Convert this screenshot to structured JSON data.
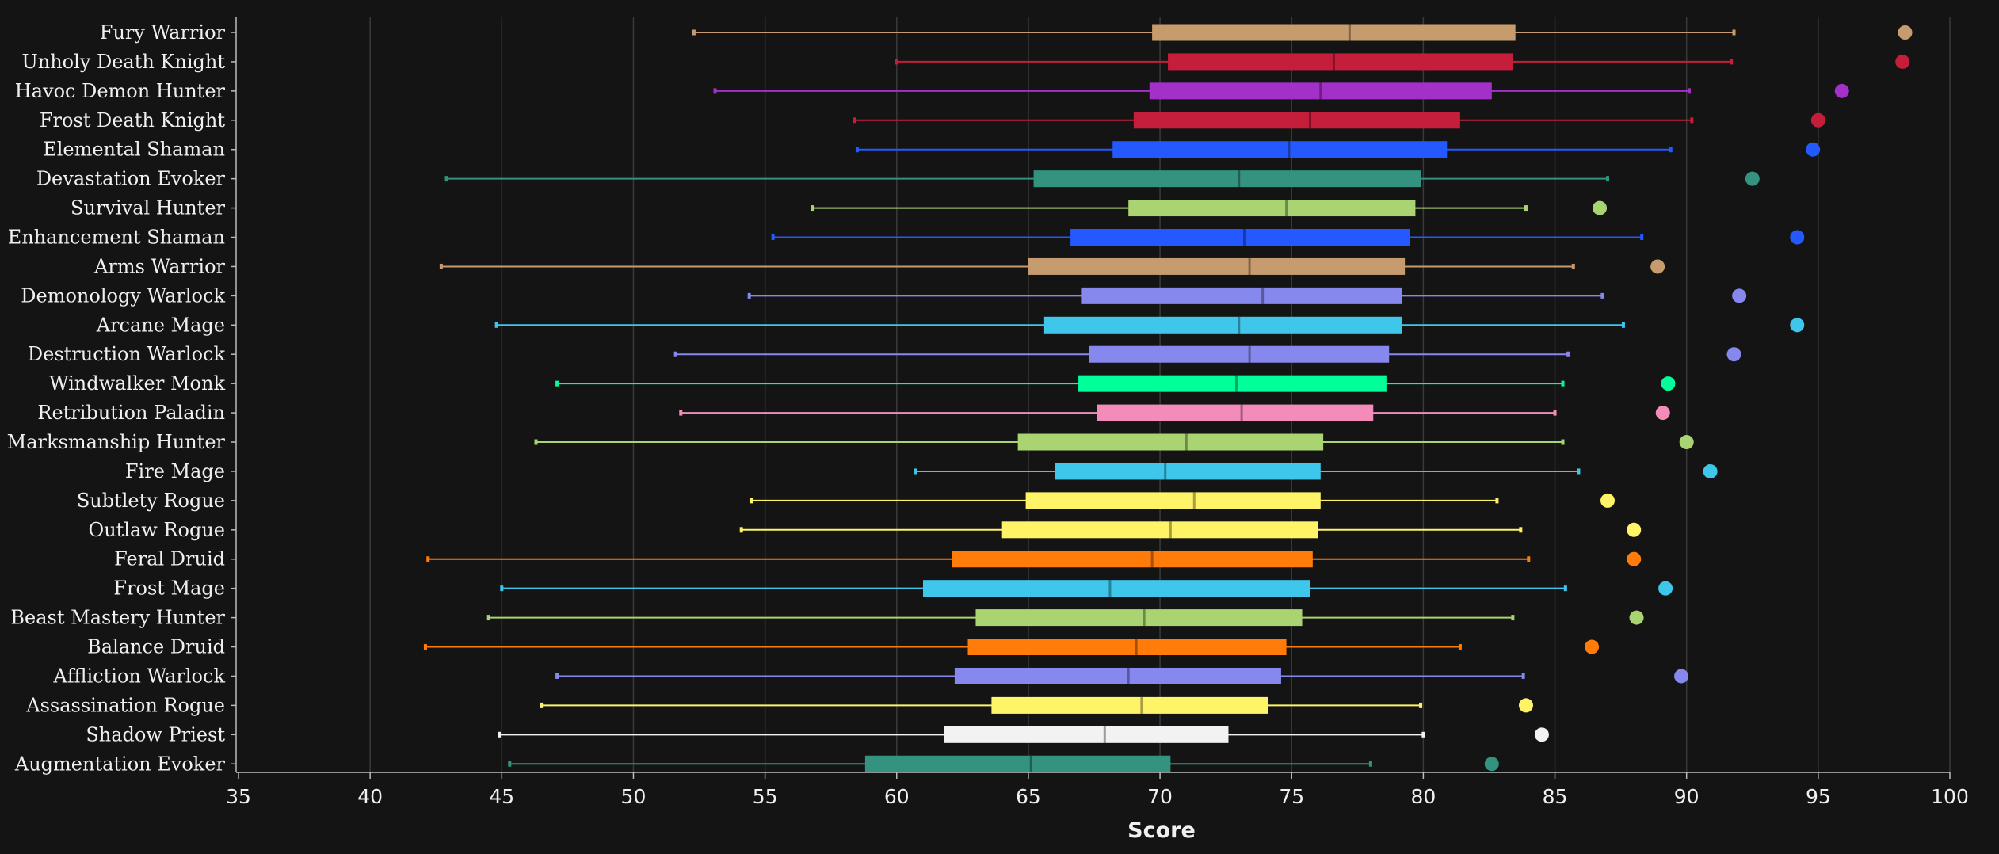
{
  "chart_data": {
    "type": "box",
    "xlabel": "Score",
    "xlim": [
      35,
      100
    ],
    "xticks": [
      35,
      40,
      45,
      50,
      55,
      60,
      65,
      70,
      75,
      80,
      85,
      90,
      95,
      100
    ],
    "grid": true,
    "series": [
      {
        "name": "Fury Warrior",
        "color": "#C69B6D",
        "min": 52.3,
        "q1": 69.7,
        "median": 77.2,
        "q3": 83.5,
        "max": 91.8,
        "max_point": 98.3
      },
      {
        "name": "Unholy Death Knight",
        "color": "#C41E3A",
        "min": 60.0,
        "q1": 70.3,
        "median": 76.6,
        "q3": 83.4,
        "max": 91.7,
        "max_point": 98.2
      },
      {
        "name": "Havoc Demon Hunter",
        "color": "#A330C9",
        "min": 53.1,
        "q1": 69.6,
        "median": 76.1,
        "q3": 82.6,
        "max": 90.1,
        "max_point": 95.9
      },
      {
        "name": "Frost Death Knight",
        "color": "#C41E3A",
        "min": 58.4,
        "q1": 69.0,
        "median": 75.7,
        "q3": 81.4,
        "max": 90.2,
        "max_point": 95.0
      },
      {
        "name": "Elemental Shaman",
        "color": "#2459FF",
        "min": 58.5,
        "q1": 68.2,
        "median": 74.9,
        "q3": 80.9,
        "max": 89.4,
        "max_point": 94.8
      },
      {
        "name": "Devastation Evoker",
        "color": "#33937F",
        "min": 42.9,
        "q1": 65.2,
        "median": 73.0,
        "q3": 79.9,
        "max": 87.0,
        "max_point": 92.5
      },
      {
        "name": "Survival Hunter",
        "color": "#AAD372",
        "min": 56.8,
        "q1": 68.8,
        "median": 74.8,
        "q3": 79.7,
        "max": 83.9,
        "max_point": 86.7
      },
      {
        "name": "Enhancement Shaman",
        "color": "#2459FF",
        "min": 55.3,
        "q1": 66.6,
        "median": 73.2,
        "q3": 79.5,
        "max": 88.3,
        "max_point": 94.2
      },
      {
        "name": "Arms Warrior",
        "color": "#C69B6D",
        "min": 42.7,
        "q1": 65.0,
        "median": 73.4,
        "q3": 79.3,
        "max": 85.7,
        "max_point": 88.9
      },
      {
        "name": "Demonology Warlock",
        "color": "#8788EE",
        "min": 54.4,
        "q1": 67.0,
        "median": 73.9,
        "q3": 79.2,
        "max": 86.8,
        "max_point": 92.0
      },
      {
        "name": "Arcane Mage",
        "color": "#3FC7EB",
        "min": 44.8,
        "q1": 65.6,
        "median": 73.0,
        "q3": 79.2,
        "max": 87.6,
        "max_point": 94.2
      },
      {
        "name": "Destruction Warlock",
        "color": "#8788EE",
        "min": 51.6,
        "q1": 67.3,
        "median": 73.4,
        "q3": 78.7,
        "max": 85.5,
        "max_point": 91.8
      },
      {
        "name": "Windwalker Monk",
        "color": "#00FF98",
        "min": 47.1,
        "q1": 66.9,
        "median": 72.9,
        "q3": 78.6,
        "max": 85.3,
        "max_point": 89.3
      },
      {
        "name": "Retribution Paladin",
        "color": "#F48CBA",
        "min": 51.8,
        "q1": 67.6,
        "median": 73.1,
        "q3": 78.1,
        "max": 85.0,
        "max_point": 89.1
      },
      {
        "name": "Marksmanship Hunter",
        "color": "#AAD372",
        "min": 46.3,
        "q1": 64.6,
        "median": 71.0,
        "q3": 76.2,
        "max": 85.3,
        "max_point": 90.0
      },
      {
        "name": "Fire Mage",
        "color": "#3FC7EB",
        "min": 60.7,
        "q1": 66.0,
        "median": 70.2,
        "q3": 76.1,
        "max": 85.9,
        "max_point": 90.9
      },
      {
        "name": "Subtlety Rogue",
        "color": "#FFF468",
        "min": 54.5,
        "q1": 64.9,
        "median": 71.3,
        "q3": 76.1,
        "max": 82.8,
        "max_point": 87.0
      },
      {
        "name": "Outlaw Rogue",
        "color": "#FFF468",
        "min": 54.1,
        "q1": 64.0,
        "median": 70.4,
        "q3": 76.0,
        "max": 83.7,
        "max_point": 88.0
      },
      {
        "name": "Feral Druid",
        "color": "#FF7C0A",
        "min": 42.2,
        "q1": 62.1,
        "median": 69.7,
        "q3": 75.8,
        "max": 84.0,
        "max_point": 88.0
      },
      {
        "name": "Frost Mage",
        "color": "#3FC7EB",
        "min": 45.0,
        "q1": 61.0,
        "median": 68.1,
        "q3": 75.7,
        "max": 85.4,
        "max_point": 89.2
      },
      {
        "name": "Beast Mastery Hunter",
        "color": "#AAD372",
        "min": 44.5,
        "q1": 63.0,
        "median": 69.4,
        "q3": 75.4,
        "max": 83.4,
        "max_point": 88.1
      },
      {
        "name": "Balance Druid",
        "color": "#FF7C0A",
        "min": 42.1,
        "q1": 62.7,
        "median": 69.1,
        "q3": 74.8,
        "max": 81.4,
        "max_point": 86.4
      },
      {
        "name": "Affliction Warlock",
        "color": "#8788EE",
        "min": 47.1,
        "q1": 62.2,
        "median": 68.8,
        "q3": 74.6,
        "max": 83.8,
        "max_point": 89.8
      },
      {
        "name": "Assassination Rogue",
        "color": "#FFF468",
        "min": 46.5,
        "q1": 63.6,
        "median": 69.3,
        "q3": 74.1,
        "max": 79.9,
        "max_point": 83.9
      },
      {
        "name": "Shadow Priest",
        "color": "#F2F2F2",
        "min": 44.9,
        "q1": 61.8,
        "median": 67.9,
        "q3": 72.6,
        "max": 80.0,
        "max_point": 84.5
      },
      {
        "name": "Augmentation Evoker",
        "color": "#33937F",
        "min": 45.3,
        "q1": 58.8,
        "median": 65.1,
        "q3": 70.4,
        "max": 78.0,
        "max_point": 82.6
      }
    ]
  }
}
